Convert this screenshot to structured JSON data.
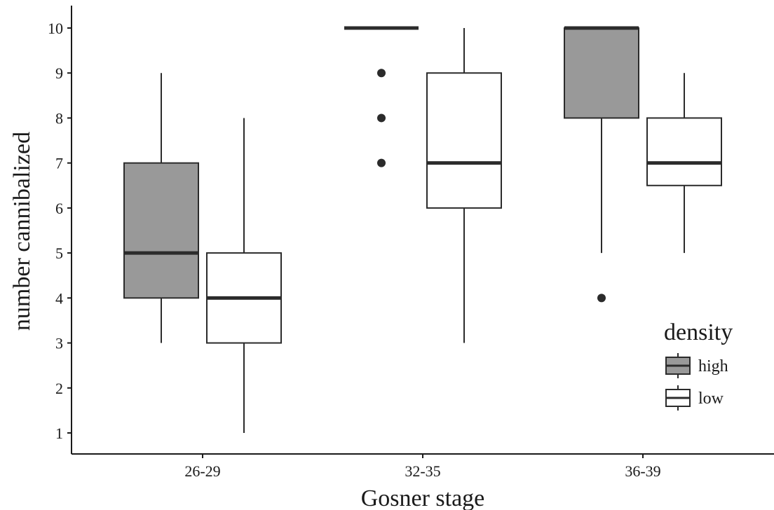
{
  "chart_data": {
    "type": "boxplot",
    "title": "",
    "xlabel": "Gosner stage",
    "ylabel": "number cannibalized",
    "categories": [
      "26-29",
      "32-35",
      "36-39"
    ],
    "yticks": [
      "1",
      "2",
      "3",
      "4",
      "5",
      "6",
      "7",
      "8",
      "9",
      "10"
    ],
    "ylim": [
      0.6,
      10.4
    ],
    "grid": false,
    "legend": {
      "title": "density",
      "placement": "bottom-right",
      "entries": [
        {
          "label": "high",
          "fill": "#999999"
        },
        {
          "label": "low",
          "fill": "#ffffff"
        }
      ]
    },
    "series": [
      {
        "name": "high",
        "fill": "#999999",
        "boxes": [
          {
            "category": "26-29",
            "whisker_low": 3,
            "q1": 4,
            "median": 5,
            "q3": 7,
            "whisker_high": 9,
            "outliers": []
          },
          {
            "category": "32-35",
            "whisker_low": 10,
            "q1": 10,
            "median": 10,
            "q3": 10,
            "whisker_high": 10,
            "outliers": [
              7,
              8,
              9
            ]
          },
          {
            "category": "36-39",
            "whisker_low": 5,
            "q1": 8,
            "median": 10,
            "q3": 10,
            "whisker_high": 10,
            "outliers": [
              4
            ]
          }
        ]
      },
      {
        "name": "low",
        "fill": "#ffffff",
        "boxes": [
          {
            "category": "26-29",
            "whisker_low": 1,
            "q1": 3,
            "median": 4,
            "q3": 5,
            "whisker_high": 8,
            "outliers": []
          },
          {
            "category": "32-35",
            "whisker_low": 3,
            "q1": 6,
            "median": 7,
            "q3": 9,
            "whisker_high": 10,
            "outliers": []
          },
          {
            "category": "36-39",
            "whisker_low": 5,
            "q1": 6.5,
            "median": 7,
            "q3": 8,
            "whisker_high": 9,
            "outliers": []
          }
        ]
      }
    ],
    "colors": {
      "line": "#2b2b2b",
      "outlier": "#2b2b2b"
    }
  }
}
